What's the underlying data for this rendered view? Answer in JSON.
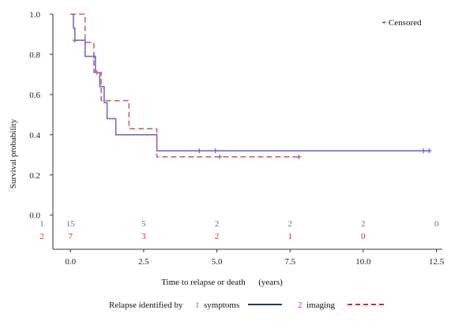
{
  "chart_data": {
    "type": "line",
    "subtype": "kaplan-meier",
    "xlabel": "Time to relapse or death      (years)",
    "ylabel": "Survival probability",
    "xlim": [
      -0.6,
      12.7
    ],
    "ylim": [
      -0.17,
      1.0
    ],
    "x_ticks": [
      0.0,
      2.5,
      5.0,
      7.5,
      10.0,
      12.5
    ],
    "x_tick_labels": [
      "0.0",
      "2.5",
      "5.0",
      "7.5",
      "10.0",
      "12.5"
    ],
    "y_ticks": [
      0.0,
      0.2,
      0.4,
      0.6,
      0.8,
      1.0
    ],
    "y_tick_labels": [
      "0.0",
      "0.2",
      "0.4",
      "0.6",
      "0.8",
      "1.0"
    ],
    "censor_legend": "+ Censored",
    "legend_title": "Relapse identified by",
    "series": [
      {
        "key": "1",
        "name": "symptoms",
        "color": "#6b6bd6",
        "legend_color": "#1f3a5f",
        "dash": "solid",
        "steps": [
          [
            0,
            1.0
          ],
          [
            0.1,
            0.93
          ],
          [
            0.15,
            0.87
          ],
          [
            0.5,
            0.79
          ],
          [
            0.85,
            0.71
          ],
          [
            1.0,
            0.64
          ],
          [
            1.15,
            0.56
          ],
          [
            1.25,
            0.48
          ],
          [
            1.55,
            0.4
          ],
          [
            2.95,
            0.32
          ],
          [
            12.3,
            0.32
          ]
        ],
        "censored": [
          [
            0.15,
            0.87
          ],
          [
            0.8,
            0.79
          ],
          [
            4.4,
            0.32
          ],
          [
            4.95,
            0.32
          ],
          [
            12.05,
            0.32
          ],
          [
            12.25,
            0.32
          ]
        ]
      },
      {
        "key": "2",
        "name": "imaging",
        "color": "#c8646e",
        "legend_color": "#e0202a",
        "dash": "dashed",
        "steps": [
          [
            0,
            1.0
          ],
          [
            0.5,
            0.86
          ],
          [
            0.8,
            0.71
          ],
          [
            1.05,
            0.57
          ],
          [
            2.0,
            0.43
          ],
          [
            2.95,
            0.29
          ],
          [
            7.85,
            0.29
          ]
        ],
        "censored": [
          [
            0.9,
            0.71
          ],
          [
            5.1,
            0.29
          ],
          [
            7.8,
            0.29
          ]
        ]
      }
    ],
    "risk_table": {
      "times": [
        0,
        2.5,
        5,
        7.5,
        10,
        12.5
      ],
      "rows": [
        {
          "label": "1",
          "color": "#4a7fa0",
          "values": [
            "15",
            "5",
            "2",
            "2",
            "2",
            "0"
          ]
        },
        {
          "label": "2",
          "color": "#cc2a2a",
          "values": [
            "7",
            "3",
            "2",
            "1",
            "0",
            ""
          ]
        }
      ]
    }
  }
}
